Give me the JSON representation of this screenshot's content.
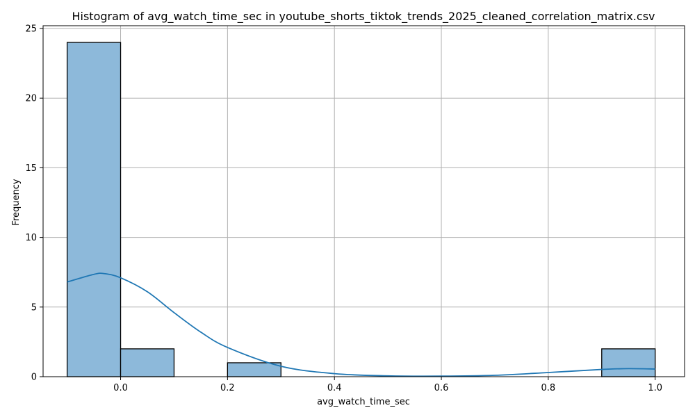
{
  "chart_data": {
    "type": "bar",
    "title": "Histogram of avg_watch_time_sec in youtube_shorts_tiktok_trends_2025_cleaned_correlation_matrix.csv",
    "xlabel": "avg_watch_time_sec",
    "ylabel": "Frequency",
    "xlim": [
      -0.145,
      1.055
    ],
    "ylim": [
      0,
      25.2
    ],
    "grid": true,
    "bins": [
      {
        "x0": -0.1,
        "x1": 0.0,
        "count": 24
      },
      {
        "x0": 0.0,
        "x1": 0.1,
        "count": 2
      },
      {
        "x0": 0.1,
        "x1": 0.2,
        "count": 0
      },
      {
        "x0": 0.2,
        "x1": 0.3,
        "count": 1
      },
      {
        "x0": 0.3,
        "x1": 0.4,
        "count": 0
      },
      {
        "x0": 0.4,
        "x1": 0.5,
        "count": 0
      },
      {
        "x0": 0.5,
        "x1": 0.6,
        "count": 0
      },
      {
        "x0": 0.6,
        "x1": 0.7,
        "count": 0
      },
      {
        "x0": 0.7,
        "x1": 0.8,
        "count": 0
      },
      {
        "x0": 0.8,
        "x1": 0.9,
        "count": 0
      },
      {
        "x0": 0.9,
        "x1": 1.0,
        "count": 2
      }
    ],
    "kde": {
      "x": [
        -0.1,
        -0.05,
        -0.03,
        0.0,
        0.05,
        0.1,
        0.15,
        0.2,
        0.3,
        0.4,
        0.5,
        0.6,
        0.7,
        0.8,
        0.9,
        0.95,
        1.0
      ],
      "y": [
        6.8,
        7.35,
        7.4,
        7.1,
        6.1,
        4.6,
        3.2,
        2.1,
        0.75,
        0.22,
        0.06,
        0.04,
        0.1,
        0.3,
        0.52,
        0.58,
        0.55
      ]
    },
    "xticks": [
      "0.0",
      "0.2",
      "0.4",
      "0.6",
      "0.8",
      "1.0"
    ],
    "xtick_values": [
      0.0,
      0.2,
      0.4,
      0.6,
      0.8,
      1.0
    ],
    "yticks": [
      "0",
      "5",
      "10",
      "15",
      "20",
      "25"
    ],
    "ytick_values": [
      0,
      5,
      10,
      15,
      20,
      25
    ],
    "colors": {
      "bar_fill": "#8db9da",
      "bar_edge": "#000000",
      "kde_line": "#1f77b4",
      "grid": "#b0b0b0"
    }
  }
}
